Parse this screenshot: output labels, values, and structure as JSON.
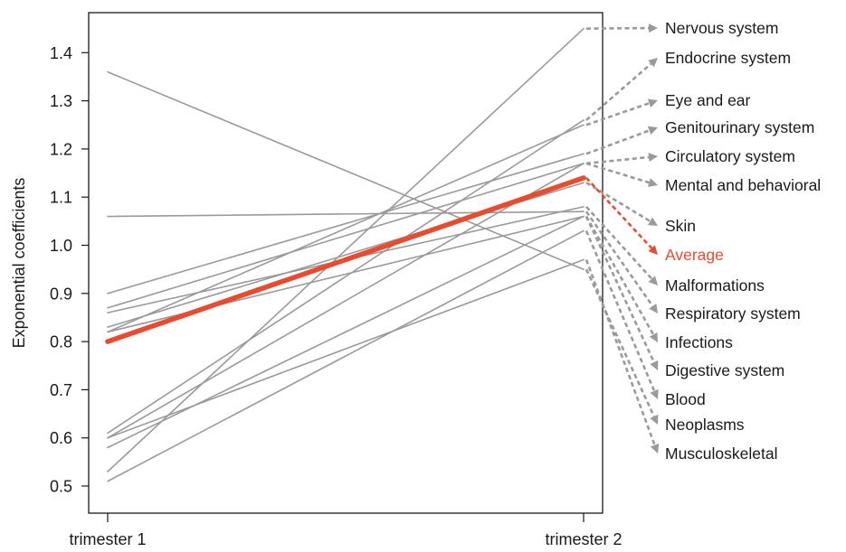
{
  "chart_data": {
    "type": "line",
    "title": "",
    "xlabel": "",
    "ylabel": "Exponential coefficients",
    "categories": [
      "trimester 1",
      "trimester 2"
    ],
    "ylim": [
      0.47,
      1.5
    ],
    "yticks": [
      0.5,
      0.6,
      0.7,
      0.8,
      0.9,
      1.0,
      1.1,
      1.2,
      1.3,
      1.4
    ],
    "ytick_labels": [
      "0.5",
      "0.6",
      "0.7",
      "0.8",
      "0.9",
      "1.0",
      "1.1",
      "1.2",
      "1.3",
      "1.4"
    ],
    "grid": false,
    "legend_placement": "right",
    "series": [
      {
        "name": "Nervous system",
        "values": [
          0.53,
          1.45
        ],
        "color": "#9a9a9a"
      },
      {
        "name": "Endocrine system",
        "values": [
          0.61,
          1.26
        ],
        "color": "#9a9a9a"
      },
      {
        "name": "Eye and ear",
        "values": [
          0.82,
          1.25
        ],
        "color": "#9a9a9a"
      },
      {
        "name": "Genitourinary system",
        "values": [
          0.9,
          1.19
        ],
        "color": "#9a9a9a"
      },
      {
        "name": "Circulatory system",
        "values": [
          0.87,
          1.17
        ],
        "color": "#9a9a9a"
      },
      {
        "name": "Mental and behavioral",
        "values": [
          0.6,
          1.17
        ],
        "color": "#9a9a9a"
      },
      {
        "name": "Skin",
        "values": [
          0.83,
          1.13
        ],
        "color": "#9a9a9a"
      },
      {
        "name": "Average",
        "values": [
          0.8,
          1.14
        ],
        "color": "#e84c30"
      },
      {
        "name": "Malformations",
        "values": [
          0.86,
          1.08
        ],
        "color": "#9a9a9a"
      },
      {
        "name": "Respiratory system",
        "values": [
          1.06,
          1.07
        ],
        "color": "#9a9a9a"
      },
      {
        "name": "Infections",
        "values": [
          0.82,
          1.06
        ],
        "color": "#9a9a9a"
      },
      {
        "name": "Digestive system",
        "values": [
          0.58,
          1.06
        ],
        "color": "#9a9a9a"
      },
      {
        "name": "Blood",
        "values": [
          0.51,
          1.03
        ],
        "color": "#9a9a9a"
      },
      {
        "name": "Neoplasms",
        "values": [
          1.36,
          0.95
        ],
        "color": "#9a9a9a"
      },
      {
        "name": "Musculoskeletal",
        "values": [
          0.6,
          0.97
        ],
        "color": "#9a9a9a"
      }
    ]
  }
}
